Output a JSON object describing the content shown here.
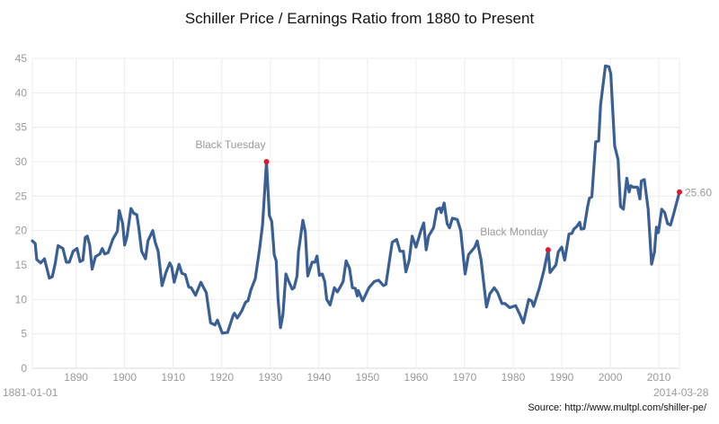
{
  "chart_data": {
    "type": "line",
    "title": "Schiller Price / Earnings Ratio from 1880 to Present",
    "xlabel": "",
    "ylabel": "",
    "xlim": [
      1881.0,
      2014.24
    ],
    "ylim": [
      0,
      45
    ],
    "grid": true,
    "x_ticks": [
      1890,
      1900,
      1910,
      1920,
      1930,
      1940,
      1950,
      1960,
      1970,
      1980,
      1990,
      2000,
      2010
    ],
    "y_ticks": [
      0,
      5,
      10,
      15,
      20,
      25,
      30,
      35,
      40,
      45
    ],
    "start_label": "1881-01-01",
    "end_label": "2014-03-28",
    "line_color": "#3a5f95",
    "marker_color": "#e0182e",
    "annotations": [
      {
        "label": "Black Tuesday",
        "x": 1929.2,
        "y": 30.0
      },
      {
        "label": "Black Monday",
        "x": 1987.2,
        "y": 17.2
      },
      {
        "label": "25.60",
        "x": 2014.24,
        "y": 25.6
      }
    ],
    "points": [
      [
        1881.0,
        18.5
      ],
      [
        1881.6,
        18.1
      ],
      [
        1881.9,
        15.8
      ],
      [
        1882.7,
        15.3
      ],
      [
        1883.5,
        15.9
      ],
      [
        1884.5,
        13.1
      ],
      [
        1885.1,
        13.3
      ],
      [
        1885.7,
        15.2
      ],
      [
        1886.3,
        17.8
      ],
      [
        1887.3,
        17.4
      ],
      [
        1888.0,
        15.4
      ],
      [
        1888.6,
        15.4
      ],
      [
        1889.4,
        17.0
      ],
      [
        1890.2,
        17.4
      ],
      [
        1890.8,
        15.5
      ],
      [
        1891.4,
        15.7
      ],
      [
        1891.9,
        19.0
      ],
      [
        1892.3,
        19.2
      ],
      [
        1892.8,
        17.9
      ],
      [
        1893.3,
        14.4
      ],
      [
        1894.0,
        16.2
      ],
      [
        1894.9,
        16.6
      ],
      [
        1895.4,
        17.4
      ],
      [
        1895.9,
        16.6
      ],
      [
        1896.6,
        16.8
      ],
      [
        1897.6,
        18.8
      ],
      [
        1898.5,
        19.9
      ],
      [
        1898.9,
        22.9
      ],
      [
        1899.6,
        21.0
      ],
      [
        1900.0,
        17.9
      ],
      [
        1900.5,
        19.2
      ],
      [
        1901.3,
        23.2
      ],
      [
        1901.9,
        22.5
      ],
      [
        1902.5,
        22.3
      ],
      [
        1902.9,
        20.5
      ],
      [
        1903.5,
        17.0
      ],
      [
        1904.3,
        15.9
      ],
      [
        1904.8,
        18.5
      ],
      [
        1905.8,
        20.0
      ],
      [
        1906.3,
        18.3
      ],
      [
        1906.9,
        17.0
      ],
      [
        1907.7,
        12.0
      ],
      [
        1908.5,
        13.9
      ],
      [
        1909.3,
        15.3
      ],
      [
        1909.7,
        14.7
      ],
      [
        1910.2,
        12.5
      ],
      [
        1911.2,
        15.1
      ],
      [
        1911.8,
        13.8
      ],
      [
        1912.5,
        13.6
      ],
      [
        1913.2,
        11.8
      ],
      [
        1913.7,
        11.7
      ],
      [
        1914.6,
        10.6
      ],
      [
        1915.7,
        12.5
      ],
      [
        1916.8,
        11.0
      ],
      [
        1917.7,
        6.6
      ],
      [
        1918.6,
        6.3
      ],
      [
        1919.1,
        7.0
      ],
      [
        1920.1,
        5.1
      ],
      [
        1921.2,
        5.2
      ],
      [
        1922.3,
        7.6
      ],
      [
        1922.6,
        8.0
      ],
      [
        1923.2,
        7.3
      ],
      [
        1924.1,
        8.3
      ],
      [
        1924.9,
        9.6
      ],
      [
        1925.4,
        9.8
      ],
      [
        1926.0,
        11.4
      ],
      [
        1926.9,
        13.0
      ],
      [
        1927.8,
        17.4
      ],
      [
        1928.4,
        20.8
      ],
      [
        1928.7,
        24.3
      ],
      [
        1929.2,
        30.0
      ],
      [
        1929.8,
        22.2
      ],
      [
        1930.3,
        21.3
      ],
      [
        1930.8,
        16.5
      ],
      [
        1931.2,
        15.6
      ],
      [
        1931.6,
        10.0
      ],
      [
        1932.1,
        5.9
      ],
      [
        1932.6,
        7.8
      ],
      [
        1933.2,
        13.7
      ],
      [
        1933.8,
        12.6
      ],
      [
        1934.5,
        11.5
      ],
      [
        1934.9,
        11.7
      ],
      [
        1935.5,
        13.4
      ],
      [
        1935.8,
        16.9
      ],
      [
        1936.7,
        21.5
      ],
      [
        1937.2,
        19.8
      ],
      [
        1937.7,
        13.4
      ],
      [
        1938.6,
        15.4
      ],
      [
        1939.2,
        15.4
      ],
      [
        1939.6,
        16.3
      ],
      [
        1940.1,
        13.5
      ],
      [
        1940.7,
        13.7
      ],
      [
        1941.2,
        12.6
      ],
      [
        1941.6,
        10.0
      ],
      [
        1942.3,
        9.2
      ],
      [
        1943.2,
        11.7
      ],
      [
        1943.8,
        11.1
      ],
      [
        1944.4,
        11.8
      ],
      [
        1945.0,
        12.6
      ],
      [
        1945.6,
        15.6
      ],
      [
        1946.3,
        14.5
      ],
      [
        1946.9,
        11.7
      ],
      [
        1947.5,
        11.6
      ],
      [
        1947.9,
        10.5
      ],
      [
        1948.1,
        11.3
      ],
      [
        1949.0,
        9.8
      ],
      [
        1950.3,
        11.7
      ],
      [
        1951.4,
        12.6
      ],
      [
        1952.3,
        12.8
      ],
      [
        1953.3,
        12.0
      ],
      [
        1953.8,
        12.2
      ],
      [
        1955.1,
        18.3
      ],
      [
        1956.0,
        18.7
      ],
      [
        1956.7,
        17.0
      ],
      [
        1957.4,
        17.0
      ],
      [
        1957.9,
        14.0
      ],
      [
        1958.6,
        15.7
      ],
      [
        1959.2,
        19.2
      ],
      [
        1960.0,
        17.6
      ],
      [
        1961.0,
        20.0
      ],
      [
        1961.6,
        21.1
      ],
      [
        1962.1,
        17.2
      ],
      [
        1962.6,
        19.2
      ],
      [
        1963.6,
        20.4
      ],
      [
        1964.3,
        23.1
      ],
      [
        1964.9,
        23.3
      ],
      [
        1965.2,
        22.6
      ],
      [
        1965.8,
        24.0
      ],
      [
        1966.4,
        21.0
      ],
      [
        1966.9,
        20.4
      ],
      [
        1967.5,
        21.8
      ],
      [
        1968.5,
        21.6
      ],
      [
        1969.2,
        20.0
      ],
      [
        1969.7,
        16.5
      ],
      [
        1970.1,
        13.7
      ],
      [
        1970.8,
        16.5
      ],
      [
        1972.1,
        17.6
      ],
      [
        1972.6,
        18.5
      ],
      [
        1973.4,
        15.7
      ],
      [
        1974.5,
        8.9
      ],
      [
        1975.2,
        10.8
      ],
      [
        1976.1,
        11.7
      ],
      [
        1976.8,
        11.0
      ],
      [
        1977.7,
        9.4
      ],
      [
        1978.3,
        9.4
      ],
      [
        1979.3,
        8.8
      ],
      [
        1980.5,
        9.1
      ],
      [
        1981.4,
        7.8
      ],
      [
        1982.1,
        6.6
      ],
      [
        1983.2,
        10.0
      ],
      [
        1983.8,
        9.8
      ],
      [
        1984.2,
        9.0
      ],
      [
        1985.4,
        11.7
      ],
      [
        1986.3,
        14.1
      ],
      [
        1987.2,
        17.2
      ],
      [
        1987.6,
        13.9
      ],
      [
        1988.8,
        15.0
      ],
      [
        1989.3,
        16.9
      ],
      [
        1990.0,
        17.6
      ],
      [
        1990.6,
        15.7
      ],
      [
        1991.5,
        19.5
      ],
      [
        1992.1,
        19.6
      ],
      [
        1992.5,
        20.2
      ],
      [
        1993.1,
        20.6
      ],
      [
        1993.7,
        21.2
      ],
      [
        1994.0,
        20.2
      ],
      [
        1994.6,
        20.3
      ],
      [
        1995.3,
        23.4
      ],
      [
        1995.7,
        24.7
      ],
      [
        1996.2,
        24.9
      ],
      [
        1997.0,
        32.9
      ],
      [
        1997.6,
        33.0
      ],
      [
        1998.0,
        38.2
      ],
      [
        1999.0,
        43.9
      ],
      [
        1999.7,
        43.8
      ],
      [
        2000.1,
        42.8
      ],
      [
        2000.9,
        32.3
      ],
      [
        2001.6,
        30.3
      ],
      [
        2002.1,
        23.5
      ],
      [
        2002.7,
        23.1
      ],
      [
        2003.4,
        27.6
      ],
      [
        2003.9,
        25.6
      ],
      [
        2004.2,
        26.5
      ],
      [
        2004.8,
        26.3
      ],
      [
        2005.6,
        26.3
      ],
      [
        2006.1,
        24.6
      ],
      [
        2006.4,
        27.2
      ],
      [
        2007.0,
        27.4
      ],
      [
        2007.8,
        23.1
      ],
      [
        2008.5,
        15.1
      ],
      [
        2009.1,
        16.9
      ],
      [
        2009.5,
        20.5
      ],
      [
        2009.9,
        19.7
      ],
      [
        2010.6,
        23.1
      ],
      [
        2011.2,
        22.6
      ],
      [
        2011.8,
        21.0
      ],
      [
        2012.4,
        20.8
      ],
      [
        2013.0,
        22.3
      ],
      [
        2014.24,
        25.6
      ]
    ]
  },
  "source": "Source: http://www.multpl.com/shiller-pe/"
}
